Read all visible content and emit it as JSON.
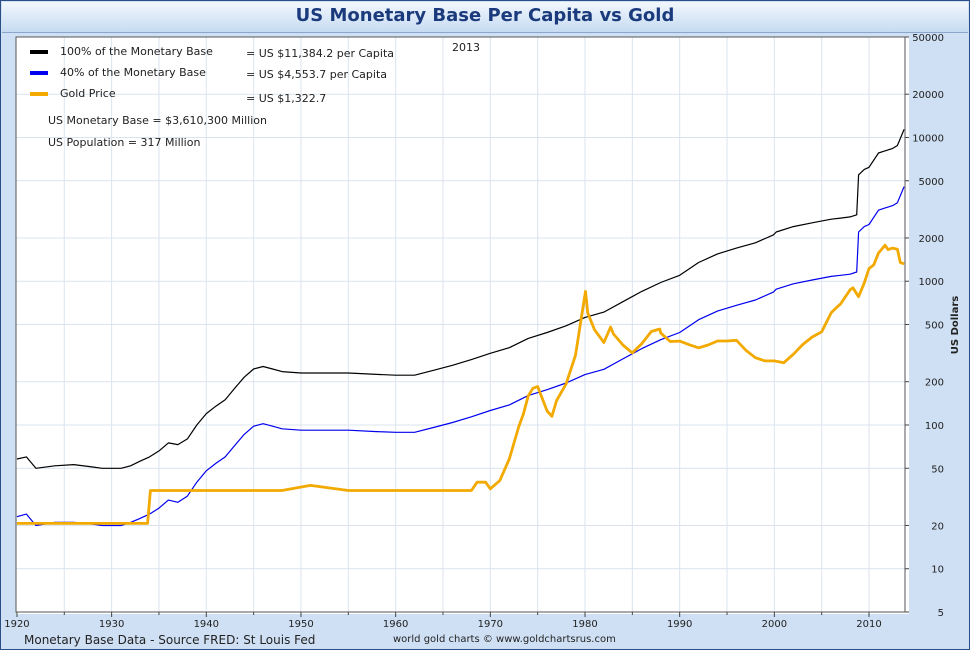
{
  "title": "US Monetary Base Per Capita vs Gold",
  "footer": {
    "source": "Monetary Base Data - Source FRED: St Louis Fed",
    "credit": "world gold charts © www.goldchartsrus.com"
  },
  "chart_data": {
    "type": "line",
    "title": "US Monetary Base Per Capita vs Gold",
    "annotation_year": "2013",
    "ylabel": "US Dollars",
    "xlabel": "",
    "yscale": "log",
    "xlim": [
      1919.9,
      2013.8
    ],
    "ylim": [
      5,
      50000
    ],
    "grid": true,
    "legend_position": "top-left",
    "x_ticks": [
      "1920",
      "1930",
      "1940",
      "1950",
      "1960",
      "1970",
      "1980",
      "1990",
      "2000",
      "2010"
    ],
    "y_ticks": [
      "5",
      "10",
      "20",
      "50",
      "100",
      "200",
      "500",
      "1000",
      "2000",
      "5000",
      "10000",
      "20000",
      "50000"
    ],
    "legend": [
      {
        "label": "100% of the Monetary Base",
        "value": "= US $11,384.2 per Capita",
        "color": "#000000"
      },
      {
        "label": "40% of the Monetary Base",
        "value": "= US $4,553.7 per Capita",
        "color": "#0000ee"
      },
      {
        "label": "Gold Price",
        "value": "= US $1,322.7",
        "color": "#f2a900"
      }
    ],
    "notes": [
      "US Monetary Base = $3,610,300 Million",
      "US Population = 317 Million"
    ],
    "series": [
      {
        "name": "100% of the Monetary Base",
        "color": "#000000",
        "x": [
          1920,
          1921,
          1922,
          1924,
          1926,
          1928,
          1929,
          1931,
          1932,
          1933,
          1934,
          1935,
          1936,
          1937,
          1938,
          1939,
          1940,
          1941,
          1942,
          1943,
          1944,
          1945,
          1946,
          1947,
          1948,
          1950,
          1952,
          1955,
          1958,
          1960,
          1962,
          1964,
          1966,
          1968,
          1970,
          1972,
          1974,
          1976,
          1978,
          1980,
          1982,
          1984,
          1986,
          1988,
          1990,
          1992,
          1994,
          1996,
          1998,
          1999.9,
          2000.2,
          2002,
          2004,
          2006,
          2007,
          2008,
          2008.7,
          2008.9,
          2009.5,
          2010,
          2011,
          2011.5,
          2012,
          2012.5,
          2013,
          2013.7
        ],
        "y": [
          58,
          60,
          50,
          52,
          53,
          51,
          50,
          50,
          52,
          56,
          60,
          66,
          75,
          73,
          80,
          100,
          120,
          135,
          150,
          180,
          215,
          245,
          255,
          245,
          235,
          230,
          230,
          230,
          225,
          222,
          222,
          240,
          260,
          285,
          315,
          345,
          400,
          440,
          490,
          560,
          610,
          720,
          850,
          980,
          1100,
          1350,
          1550,
          1700,
          1850,
          2100,
          2200,
          2400,
          2550,
          2700,
          2750,
          2800,
          2900,
          5500,
          6000,
          6200,
          7800,
          8000,
          8200,
          8400,
          8800,
          11384
        ]
      },
      {
        "name": "40% of the Monetary Base",
        "color": "#0000ee",
        "x": [
          1920,
          1921,
          1922,
          1924,
          1926,
          1928,
          1929,
          1931,
          1932,
          1933,
          1934,
          1935,
          1936,
          1937,
          1938,
          1939,
          1940,
          1941,
          1942,
          1943,
          1944,
          1945,
          1946,
          1947,
          1948,
          1950,
          1952,
          1955,
          1958,
          1960,
          1962,
          1964,
          1966,
          1968,
          1970,
          1972,
          1974,
          1976,
          1978,
          1980,
          1982,
          1984,
          1986,
          1988,
          1990,
          1992,
          1994,
          1996,
          1998,
          1999.9,
          2000.2,
          2002,
          2004,
          2006,
          2007,
          2008,
          2008.7,
          2008.9,
          2009.5,
          2010,
          2011,
          2011.5,
          2012,
          2012.5,
          2013,
          2013.7
        ],
        "y": [
          23,
          24,
          20,
          21,
          21,
          20.4,
          20,
          20,
          21,
          22.4,
          24,
          26.4,
          30,
          29,
          32,
          40,
          48,
          54,
          60,
          72,
          86,
          98,
          102,
          98,
          94,
          92,
          92,
          92,
          90,
          89,
          89,
          96,
          104,
          114,
          126,
          138,
          160,
          176,
          196,
          224,
          244,
          288,
          340,
          392,
          440,
          540,
          620,
          680,
          740,
          840,
          880,
          960,
          1020,
          1080,
          1100,
          1120,
          1160,
          2200,
          2400,
          2480,
          3120,
          3200,
          3280,
          3360,
          3520,
          4553.7
        ]
      },
      {
        "name": "Gold Price",
        "color": "#f2a900",
        "x": [
          1920,
          1925,
          1930,
          1933.8,
          1934.1,
          1936,
          1940,
          1945,
          1948,
          1951,
          1955,
          1960,
          1965,
          1968,
          1968.6,
          1969.5,
          1970,
          1971,
          1972,
          1973,
          1973.5,
          1974,
          1974.5,
          1975,
          1976,
          1976.5,
          1977,
          1978,
          1979,
          1979.5,
          1980.05,
          1980.3,
          1981,
          1982,
          1982.7,
          1983,
          1984,
          1985,
          1986,
          1987,
          1987.9,
          1988,
          1989,
          1990,
          1991,
          1992,
          1993,
          1994,
          1995,
          1996,
          1997,
          1998,
          1999,
          2000,
          2001,
          2002,
          2003,
          2004,
          2005,
          2006,
          2006.5,
          2007,
          2008,
          2008.3,
          2008.9,
          2009.5,
          2010,
          2010.5,
          2011,
          2011.7,
          2012,
          2012.5,
          2013,
          2013.3,
          2013.7
        ],
        "y": [
          20.67,
          20.67,
          20.67,
          20.67,
          35,
          35,
          35,
          35,
          35,
          38,
          35,
          35,
          35,
          35,
          40,
          40,
          36,
          41,
          58,
          97,
          120,
          159,
          180,
          185,
          125,
          115,
          148,
          193,
          306,
          500,
          850,
          600,
          460,
          375,
          480,
          430,
          360,
          317,
          368,
          447,
          465,
          437,
          381,
          383,
          362,
          344,
          360,
          384,
          384,
          388,
          331,
          294,
          279,
          279,
          271,
          310,
          363,
          409,
          445,
          604,
          650,
          695,
          872,
          900,
          780,
          975,
          1225,
          1300,
          1572,
          1780,
          1660,
          1700,
          1670,
          1350,
          1322.7
        ]
      }
    ]
  }
}
